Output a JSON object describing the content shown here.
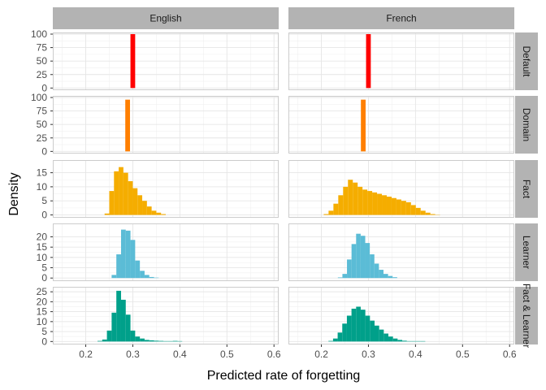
{
  "chart_data": {
    "type": "bar",
    "xlabel": "Predicted rate of forgetting",
    "ylabel": "Density",
    "x_ticks": [
      "0.2",
      "0.3",
      "0.4",
      "0.5",
      "0.6"
    ],
    "xlim": [
      0.13,
      0.61
    ],
    "columns": [
      "English",
      "French"
    ],
    "rows": [
      {
        "label": "Default",
        "color": "#ff0000",
        "ylim": [
          -4,
          103
        ],
        "y_ticks": [
          "0",
          "25",
          "50",
          "75",
          "100"
        ],
        "panels": [
          {
            "column": "English",
            "x_start": 0.295,
            "bin_width": 0.01,
            "values": [
              100
            ]
          },
          {
            "column": "French",
            "x_start": 0.295,
            "bin_width": 0.01,
            "values": [
              100
            ]
          }
        ]
      },
      {
        "label": "Domain",
        "color": "#ff7f00",
        "ylim": [
          -4,
          103
        ],
        "y_ticks": [
          "0",
          "25",
          "50",
          "75",
          "100"
        ],
        "panels": [
          {
            "column": "English",
            "x_start": 0.284,
            "bin_width": 0.01,
            "values": [
              96
            ]
          },
          {
            "column": "French",
            "x_start": 0.284,
            "bin_width": 0.01,
            "values": [
              96
            ]
          }
        ]
      },
      {
        "label": "Fact",
        "color": "#f5ad00",
        "ylim": [
          -1,
          19.5
        ],
        "y_ticks": [
          "0",
          "5",
          "10",
          "15"
        ],
        "panels": [
          {
            "column": "English",
            "x_start": 0.24,
            "bin_width": 0.01,
            "values": [
              0.5,
              8.5,
              15.5,
              17,
              15,
              12,
              9.5,
              7,
              5,
              3,
              1.5,
              0.8,
              0.3
            ]
          },
          {
            "column": "French",
            "x_start": 0.205,
            "bin_width": 0.0103,
            "values": [
              0.3,
              1.5,
              4,
              7,
              10,
              12.5,
              11.5,
              10,
              9,
              8.5,
              8,
              7.5,
              7,
              6.5,
              6,
              5.5,
              5,
              4.5,
              3.5,
              2.5,
              1.5,
              0.8,
              0.3,
              0.1
            ]
          }
        ]
      },
      {
        "label": "Learner",
        "color": "#5bbcd6",
        "ylim": [
          -1.5,
          26.5
        ],
        "y_ticks": [
          "0",
          "5",
          "10",
          "15",
          "20"
        ],
        "panels": [
          {
            "column": "English",
            "x_start": 0.255,
            "bin_width": 0.01,
            "values": [
              1.5,
              11.5,
              23.5,
              23,
              18.5,
              8.5,
              3.5,
              1.5,
              0.5,
              0.2
            ]
          },
          {
            "column": "French",
            "x_start": 0.235,
            "bin_width": 0.0097,
            "values": [
              0.3,
              2,
              9,
              16.5,
              21.5,
              20.5,
              17,
              11.5,
              7,
              4,
              2,
              1,
              0.4
            ]
          }
        ]
      },
      {
        "label": "Fact & Learner",
        "color": "#00a08a",
        "ylim": [
          -1.5,
          27.5
        ],
        "y_ticks": [
          "0",
          "5",
          "10",
          "15",
          "20",
          "25"
        ],
        "panels": [
          {
            "column": "English",
            "x_start": 0.225,
            "bin_width": 0.01,
            "values": [
              0.3,
              1,
              5.5,
              14.5,
              25.5,
              21,
              13.5,
              5.5,
              2.5,
              1.5,
              0.8,
              0.6,
              0.4,
              0.3,
              0.2,
              0.2,
              0.3,
              0.2
            ]
          },
          {
            "column": "French",
            "x_start": 0.215,
            "bin_width": 0.0098,
            "values": [
              0.3,
              1.5,
              4.5,
              9,
              13,
              16.5,
              17.5,
              16,
              13,
              10.5,
              8,
              6,
              4,
              2.5,
              1.5,
              0.8,
              0.4,
              0.2,
              0.2,
              0.2,
              0.2
            ]
          }
        ]
      }
    ]
  }
}
